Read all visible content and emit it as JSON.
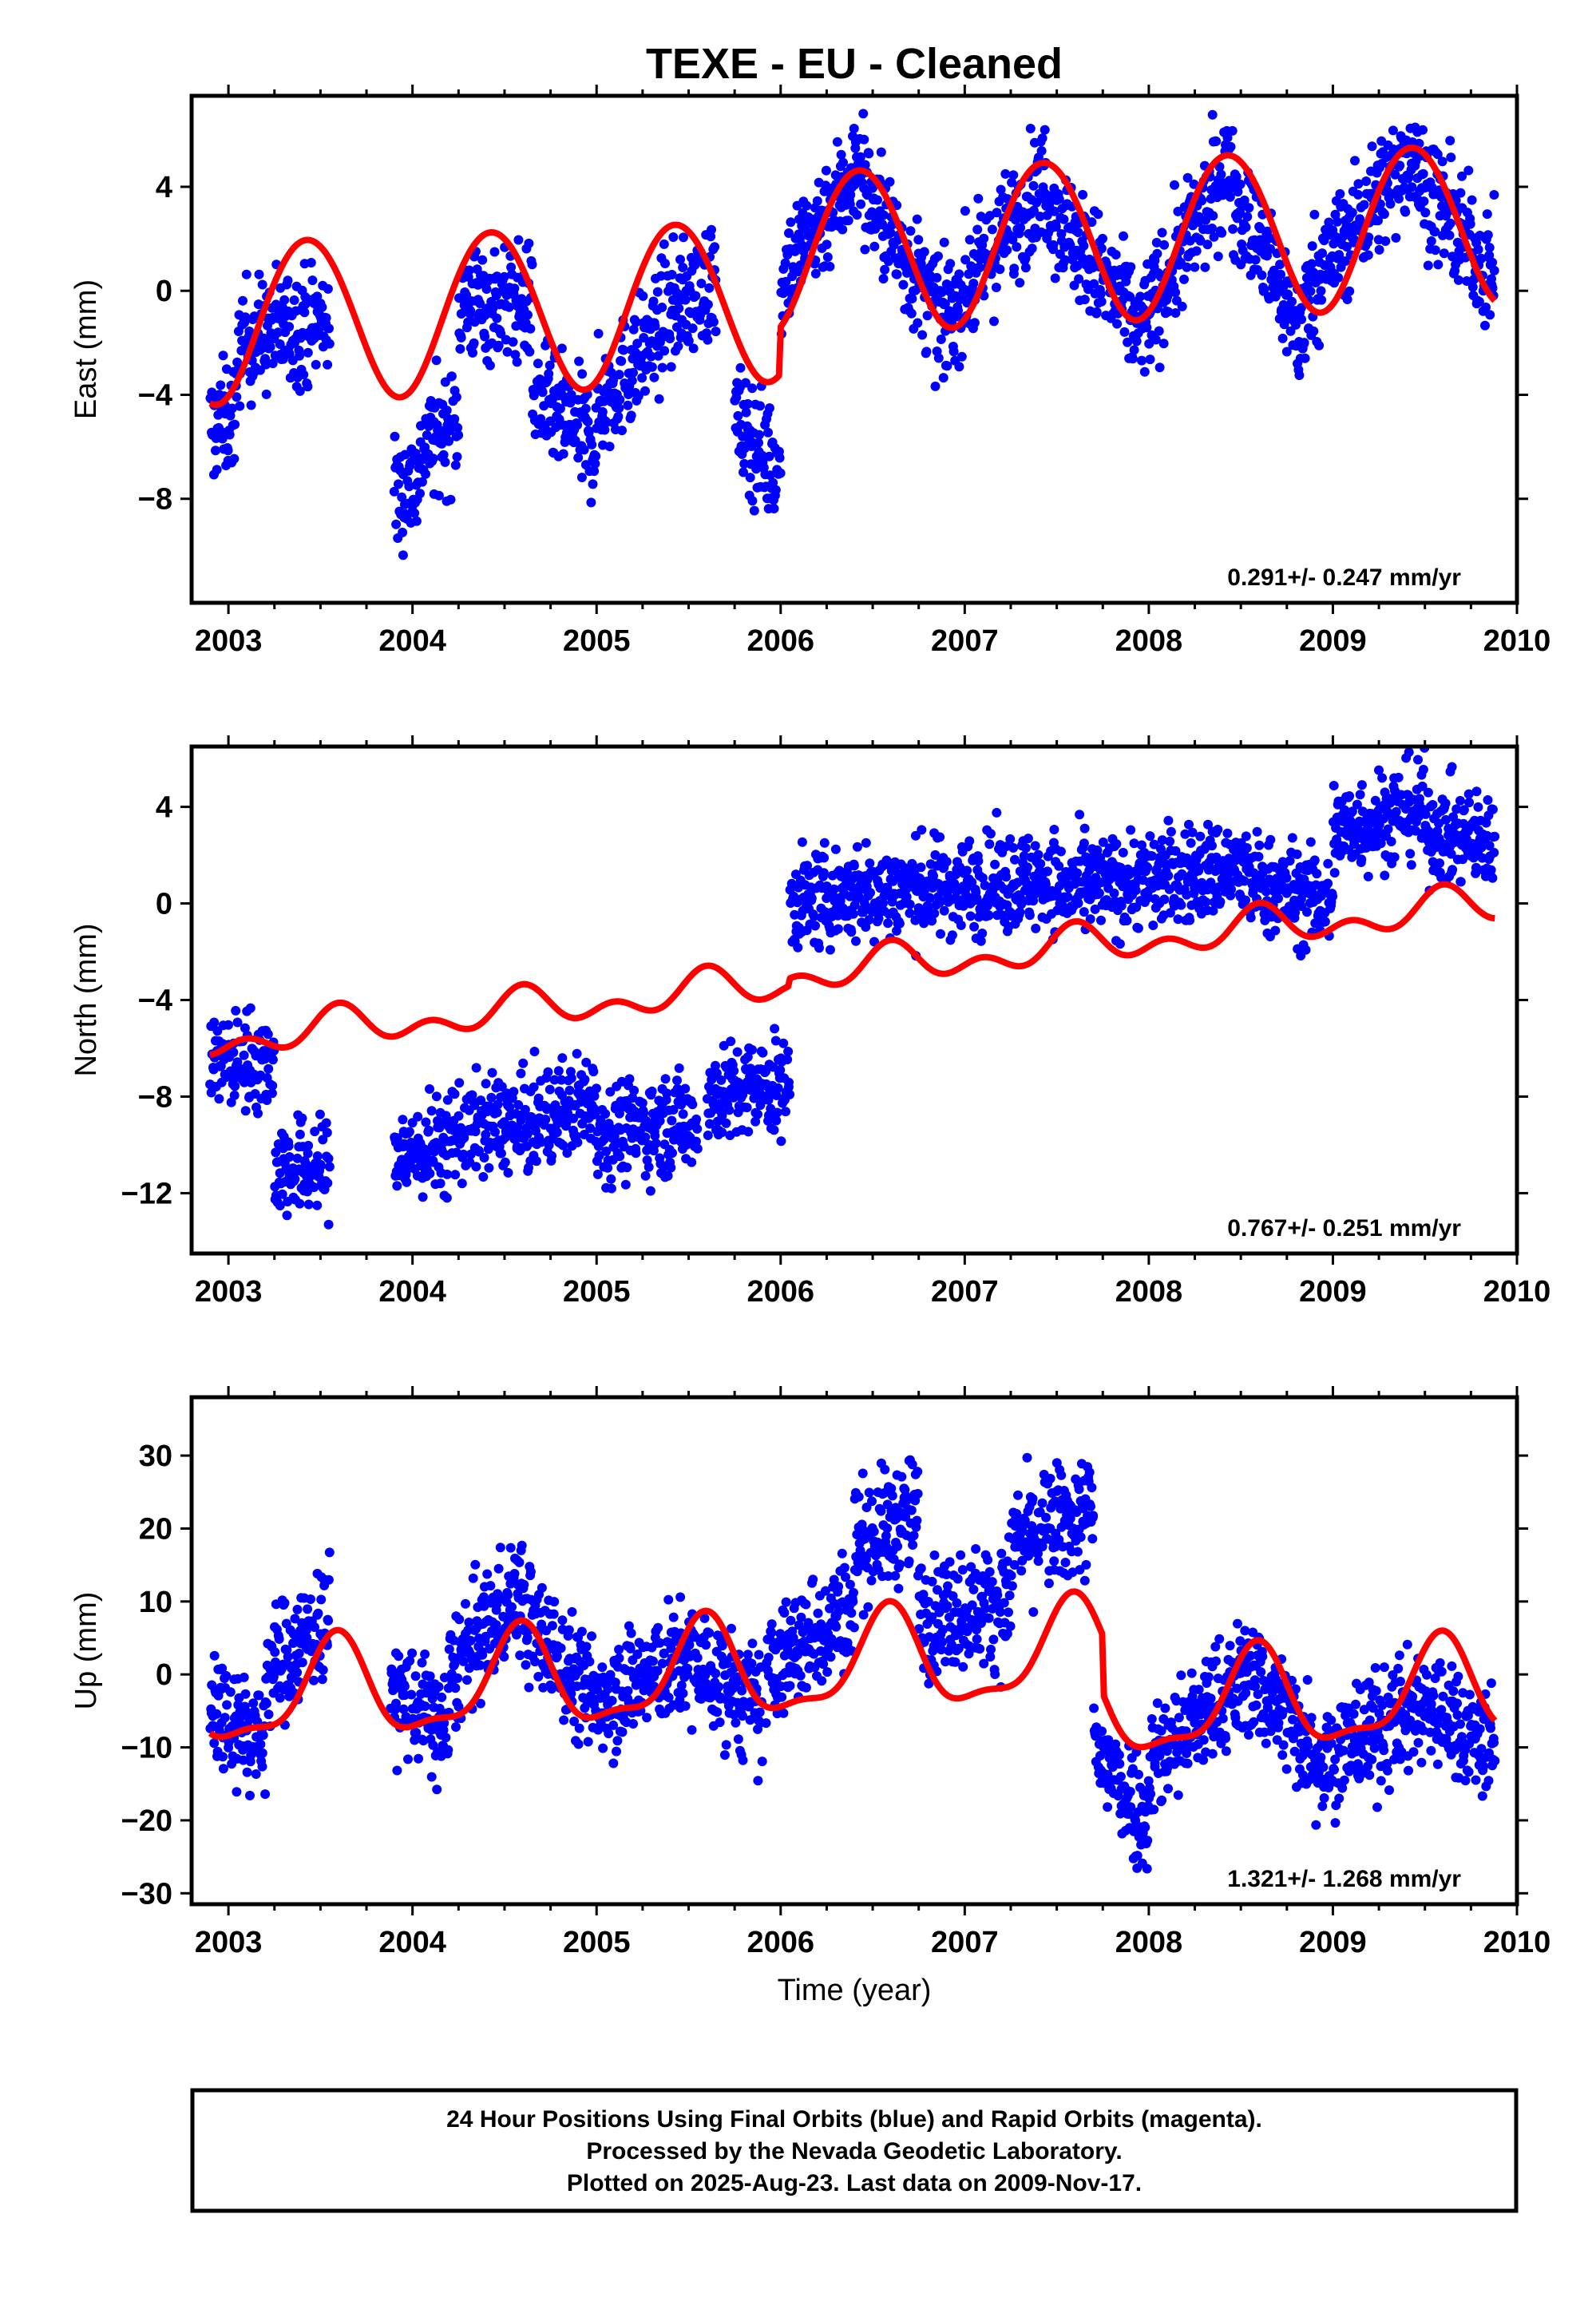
{
  "title": "TEXE  - EU - Cleaned",
  "footer": {
    "line1": "24 Hour Positions Using Final Orbits (blue) and Rapid Orbits (magenta).",
    "line2": "Processed by the Nevada Geodetic Laboratory.",
    "line3": "Plotted on 2025-Aug-23. Last data on 2009-Nov-17."
  },
  "colors": {
    "observations": "#0000ff",
    "model": "#ff0000",
    "frame": "#000000"
  },
  "chart_data": [
    {
      "type": "scatter",
      "ylabel": "East (mm)",
      "xlabel": "",
      "xlim": [
        2002.8,
        2010.0
      ],
      "ylim": [
        -12,
        7.5
      ],
      "xticks": [
        2003,
        2004,
        2005,
        2006,
        2007,
        2008,
        2009,
        2010
      ],
      "yticks": [
        -8,
        -4,
        0,
        4
      ],
      "rate": "0.291+/- 0.247 mm/yr",
      "data_start": 2002.9,
      "data_end": 2009.88,
      "gaps": [
        [
          2003.55,
          2003.9
        ],
        [
          2004.85,
          2004.86
        ],
        [
          2005.65,
          2005.75
        ]
      ],
      "series": [
        {
          "kind": "points",
          "segments": [
            {
              "x0": 2002.9,
              "x1": 2003.05,
              "y0": -5.3,
              "y1": -4.7
            },
            {
              "x0": 2003.05,
              "x1": 2003.55,
              "y0": -2.0,
              "y1": -1.0
            },
            {
              "x0": 2003.9,
              "x1": 2004.05,
              "y0": -8.0,
              "y1": -7.0
            },
            {
              "x0": 2004.05,
              "x1": 2004.25,
              "y0": -6.0,
              "y1": -5.0
            },
            {
              "x0": 2004.25,
              "x1": 2004.65,
              "y0": -0.5,
              "y1": -0.5
            },
            {
              "x0": 2004.65,
              "x1": 2005.0,
              "y0": -4.0,
              "y1": -6.0
            },
            {
              "x0": 2005.0,
              "x1": 2005.35,
              "y0": -4.5,
              "y1": -1.5
            },
            {
              "x0": 2005.35,
              "x1": 2005.65,
              "y0": -1.0,
              "y1": 0.5
            },
            {
              "x0": 2005.75,
              "x1": 2006.0,
              "y0": -5.0,
              "y1": -7.0
            },
            {
              "x0": 2006.0,
              "x1": 2006.45,
              "y0": 0.5,
              "y1": 5.0
            },
            {
              "x0": 2006.45,
              "x1": 2006.9,
              "y0": 4.0,
              "y1": -1.5
            },
            {
              "x0": 2006.9,
              "x1": 2007.45,
              "y0": -1.0,
              "y1": 4.5
            },
            {
              "x0": 2007.45,
              "x1": 2007.95,
              "y0": 3.5,
              "y1": -1.5
            },
            {
              "x0": 2007.95,
              "x1": 2008.45,
              "y0": -1.5,
              "y1": 5.0
            },
            {
              "x0": 2008.45,
              "x1": 2008.85,
              "y0": 4.0,
              "y1": -2.0
            },
            {
              "x0": 2008.85,
              "x1": 2009.45,
              "y0": 0.0,
              "y1": 5.5
            },
            {
              "x0": 2009.45,
              "x1": 2009.88,
              "y0": 4.5,
              "y1": 0.5
            }
          ],
          "scatter": 1.1
        },
        {
          "kind": "model",
          "offset_at_start": -1.2,
          "trend_per_year": 0.291,
          "offsets": [
            [
              2006.0,
              1.8
            ]
          ],
          "annual_amp": 3.1,
          "annual_phase": 2003.43,
          "semiannual_amp": 0.1,
          "semiannual_phase": 2003.2
        }
      ]
    },
    {
      "type": "scatter",
      "ylabel": "North (mm)",
      "xlabel": "",
      "xlim": [
        2002.8,
        2010.0
      ],
      "ylim": [
        -14.5,
        6.5
      ],
      "xticks": [
        2003,
        2004,
        2005,
        2006,
        2007,
        2008,
        2009,
        2010
      ],
      "yticks": [
        -12,
        -8,
        -4,
        0,
        4
      ],
      "rate": "0.767+/- 0.251 mm/yr",
      "data_start": 2002.9,
      "data_end": 2009.88,
      "gaps": [
        [
          2003.55,
          2003.9
        ],
        [
          2005.55,
          2005.6
        ],
        [
          2005.75,
          2005.78
        ]
      ],
      "series": [
        {
          "kind": "points",
          "segments": [
            {
              "x0": 2002.9,
              "x1": 2003.25,
              "y0": -6.5,
              "y1": -6.5
            },
            {
              "x0": 2003.25,
              "x1": 2003.55,
              "y0": -11.0,
              "y1": -11.0
            },
            {
              "x0": 2003.9,
              "x1": 2004.2,
              "y0": -10.5,
              "y1": -10.0
            },
            {
              "x0": 2004.2,
              "x1": 2004.55,
              "y0": -9.5,
              "y1": -9.0
            },
            {
              "x0": 2004.55,
              "x1": 2005.0,
              "y0": -9.5,
              "y1": -8.0
            },
            {
              "x0": 2005.0,
              "x1": 2005.55,
              "y0": -9.5,
              "y1": -9.0
            },
            {
              "x0": 2005.6,
              "x1": 2006.05,
              "y0": -8.0,
              "y1": -7.5
            },
            {
              "x0": 2006.05,
              "x1": 2006.55,
              "y0": 0.0,
              "y1": 0.5
            },
            {
              "x0": 2006.55,
              "x1": 2007.5,
              "y0": 0.5,
              "y1": 1.0
            },
            {
              "x0": 2007.5,
              "x1": 2008.5,
              "y0": 0.5,
              "y1": 1.5
            },
            {
              "x0": 2008.5,
              "x1": 2009.0,
              "y0": 1.0,
              "y1": 0.0
            },
            {
              "x0": 2009.0,
              "x1": 2009.5,
              "y0": 3.0,
              "y1": 4.0
            },
            {
              "x0": 2009.5,
              "x1": 2009.88,
              "y0": 3.0,
              "y1": 2.5
            }
          ],
          "scatter": 1.0
        },
        {
          "kind": "model",
          "offset_at_start": -5.7,
          "trend_per_year": 0.767,
          "offsets": [
            [
              2006.05,
              0.3
            ]
          ],
          "annual_amp": 0.55,
          "annual_phase": 2003.6,
          "semiannual_amp": 0.5,
          "semiannual_phase": 2003.1
        }
      ]
    },
    {
      "type": "scatter",
      "ylabel": "Up (mm)",
      "xlabel": "Time (year)",
      "xlim": [
        2002.8,
        2010.0
      ],
      "ylim": [
        -31.5,
        38
      ],
      "xticks": [
        2003,
        2004,
        2005,
        2006,
        2007,
        2008,
        2009,
        2010
      ],
      "yticks": [
        -30,
        -20,
        -10,
        0,
        10,
        20,
        30
      ],
      "rate": "1.321+/- 1.268 mm/yr",
      "data_start": 2002.9,
      "data_end": 2009.88,
      "gaps": [
        [
          2003.58,
          2003.88
        ],
        [
          2005.9,
          2005.92
        ]
      ],
      "series": [
        {
          "kind": "points",
          "segments": [
            {
              "x0": 2002.9,
              "x1": 2003.2,
              "y0": -3.0,
              "y1": -10.0
            },
            {
              "x0": 2003.2,
              "x1": 2003.55,
              "y0": 0.0,
              "y1": 8.0
            },
            {
              "x0": 2003.88,
              "x1": 2004.2,
              "y0": -2.0,
              "y1": -8.0
            },
            {
              "x0": 2004.2,
              "x1": 2004.6,
              "y0": 0.0,
              "y1": 12.0
            },
            {
              "x0": 2004.6,
              "x1": 2005.0,
              "y0": 8.0,
              "y1": -4.0
            },
            {
              "x0": 2005.0,
              "x1": 2005.5,
              "y0": -3.0,
              "y1": 2.0
            },
            {
              "x0": 2005.5,
              "x1": 2005.9,
              "y0": 2.0,
              "y1": -5.0
            },
            {
              "x0": 2005.92,
              "x1": 2006.4,
              "y0": 0.0,
              "y1": 10.0
            },
            {
              "x0": 2006.4,
              "x1": 2006.75,
              "y0": 18.0,
              "y1": 22.0
            },
            {
              "x0": 2006.75,
              "x1": 2007.25,
              "y0": 8.0,
              "y1": 10.0
            },
            {
              "x0": 2007.25,
              "x1": 2007.7,
              "y0": 18.0,
              "y1": 22.0
            },
            {
              "x0": 2007.7,
              "x1": 2008.0,
              "y0": -10.0,
              "y1": -20.0
            },
            {
              "x0": 2008.0,
              "x1": 2008.55,
              "y0": -12.0,
              "y1": 0.0
            },
            {
              "x0": 2008.55,
              "x1": 2008.9,
              "y0": 0.0,
              "y1": -10.0
            },
            {
              "x0": 2008.9,
              "x1": 2009.5,
              "y0": -12.0,
              "y1": -4.0
            },
            {
              "x0": 2009.5,
              "x1": 2009.88,
              "y0": -4.0,
              "y1": -10.0
            }
          ],
          "scatter": 4.0
        },
        {
          "kind": "model",
          "offset_at_start": -3.5,
          "trend_per_year": 1.321,
          "offsets": [
            [
              2007.75,
              -8.0
            ]
          ],
          "annual_amp": 6.5,
          "annual_phase": 2003.58,
          "semiannual_amp": 2.2,
          "semiannual_phase": 2003.1
        }
      ]
    }
  ]
}
